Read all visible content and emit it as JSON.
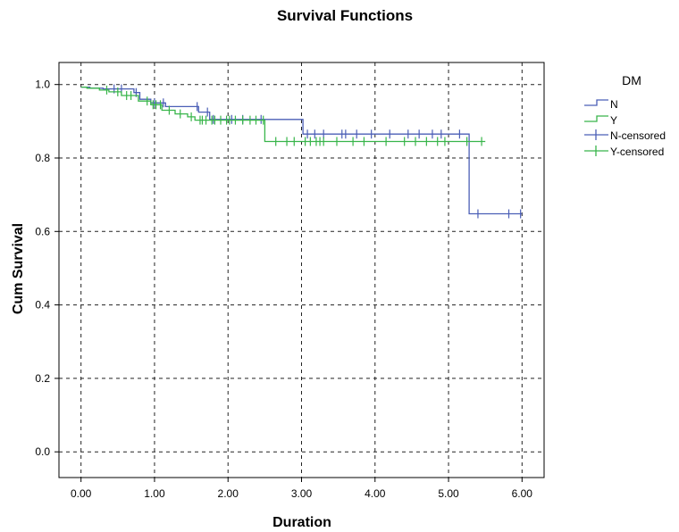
{
  "chart_data": {
    "type": "line",
    "title": "Survival Functions",
    "xlabel": "Duration",
    "ylabel": "Cum Survival",
    "xlim": [
      -0.3,
      6.3
    ],
    "ylim": [
      -0.07,
      1.06
    ],
    "x_ticks": [
      0,
      1,
      2,
      3,
      4,
      5,
      6
    ],
    "x_tick_labels": [
      "0.00",
      "1.00",
      "2.00",
      "3.00",
      "4.00",
      "5.00",
      "6.00"
    ],
    "y_ticks": [
      0,
      0.2,
      0.4,
      0.6,
      0.8,
      1.0
    ],
    "y_tick_labels": [
      "0.0",
      "0.2",
      "0.4",
      "0.6",
      "0.8",
      "1.0"
    ],
    "grid": true,
    "legend": {
      "title": "DM",
      "placement": "right",
      "entries": [
        "N",
        "Y",
        "N-censored",
        "Y-censored"
      ]
    },
    "series": [
      {
        "name": "N",
        "color": "#4b5fb6",
        "step": [
          [
            0,
            0.993
          ],
          [
            0.12,
            0.99
          ],
          [
            0.3,
            0.988
          ],
          [
            0.72,
            0.978
          ],
          [
            0.8,
            0.96
          ],
          [
            0.95,
            0.95
          ],
          [
            1.15,
            0.94
          ],
          [
            1.6,
            0.925
          ],
          [
            1.75,
            0.905
          ],
          [
            3.02,
            0.865
          ],
          [
            5.28,
            0.648
          ],
          [
            6.0,
            0.648
          ]
        ],
        "censored": [
          0.45,
          0.55,
          0.75,
          1.0,
          1.12,
          1.58,
          1.72,
          1.8,
          2.05,
          2.2,
          2.45,
          3.08,
          3.18,
          3.3,
          3.55,
          3.6,
          3.75,
          3.95,
          4.2,
          4.45,
          4.6,
          4.78,
          4.9,
          5.15,
          5.4,
          5.82,
          5.98
        ]
      },
      {
        "name": "Y",
        "color": "#38b54a",
        "step": [
          [
            0,
            0.993
          ],
          [
            0.08,
            0.99
          ],
          [
            0.25,
            0.985
          ],
          [
            0.38,
            0.98
          ],
          [
            0.55,
            0.97
          ],
          [
            0.78,
            0.955
          ],
          [
            0.95,
            0.945
          ],
          [
            1.1,
            0.93
          ],
          [
            1.28,
            0.92
          ],
          [
            1.45,
            0.912
          ],
          [
            1.55,
            0.903
          ],
          [
            2.5,
            0.845
          ],
          [
            5.5,
            0.845
          ]
        ],
        "censored": [
          0.35,
          0.5,
          0.62,
          0.68,
          0.9,
          0.98,
          1.02,
          1.08,
          1.2,
          1.35,
          1.5,
          1.62,
          1.65,
          1.7,
          1.78,
          1.82,
          1.9,
          1.98,
          2.02,
          2.1,
          2.2,
          2.3,
          2.38,
          2.48,
          2.65,
          2.8,
          2.9,
          3.05,
          3.12,
          3.2,
          3.25,
          3.3,
          3.48,
          3.7,
          3.85,
          4.15,
          4.4,
          4.55,
          4.7,
          4.85,
          4.95,
          5.25,
          5.45
        ]
      }
    ]
  }
}
